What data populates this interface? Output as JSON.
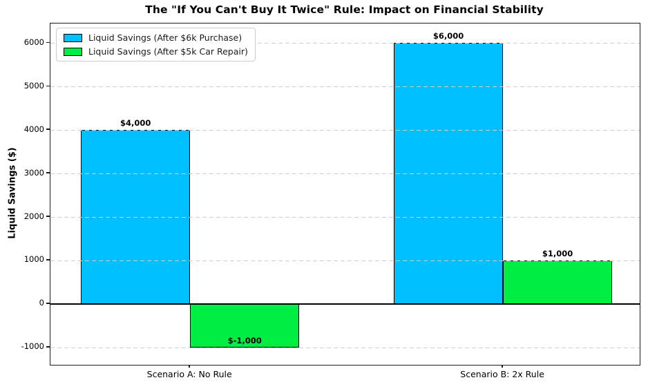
{
  "chart_data": {
    "type": "bar",
    "title": "The \"If You Can't Buy It Twice\" Rule: Impact on Financial Stability",
    "ylabel": "Liquid Savings ($)",
    "xlabel": "",
    "categories": [
      "Scenario A: No Rule",
      "Scenario B: 2x Rule"
    ],
    "series": [
      {
        "name": "Liquid Savings (After $6k Purchase)",
        "color": "#00BFFF",
        "values": [
          4000,
          6000
        ],
        "value_labels": [
          "$4,000",
          "$6,000"
        ]
      },
      {
        "name": "Liquid Savings (After $5k Car Repair)",
        "color": "#00EE44",
        "values": [
          -1000,
          1000
        ],
        "value_labels": [
          "$-1,000",
          "$1,000"
        ]
      }
    ],
    "yticks": [
      -1000,
      0,
      1000,
      2000,
      3000,
      4000,
      5000,
      6000
    ],
    "ylim": [
      -1400,
      6450
    ],
    "grid": true,
    "grid_style": "dashed",
    "legend_position": "upper-left",
    "bar_edge_color": "#000000",
    "zero_line_color": "#000000"
  }
}
